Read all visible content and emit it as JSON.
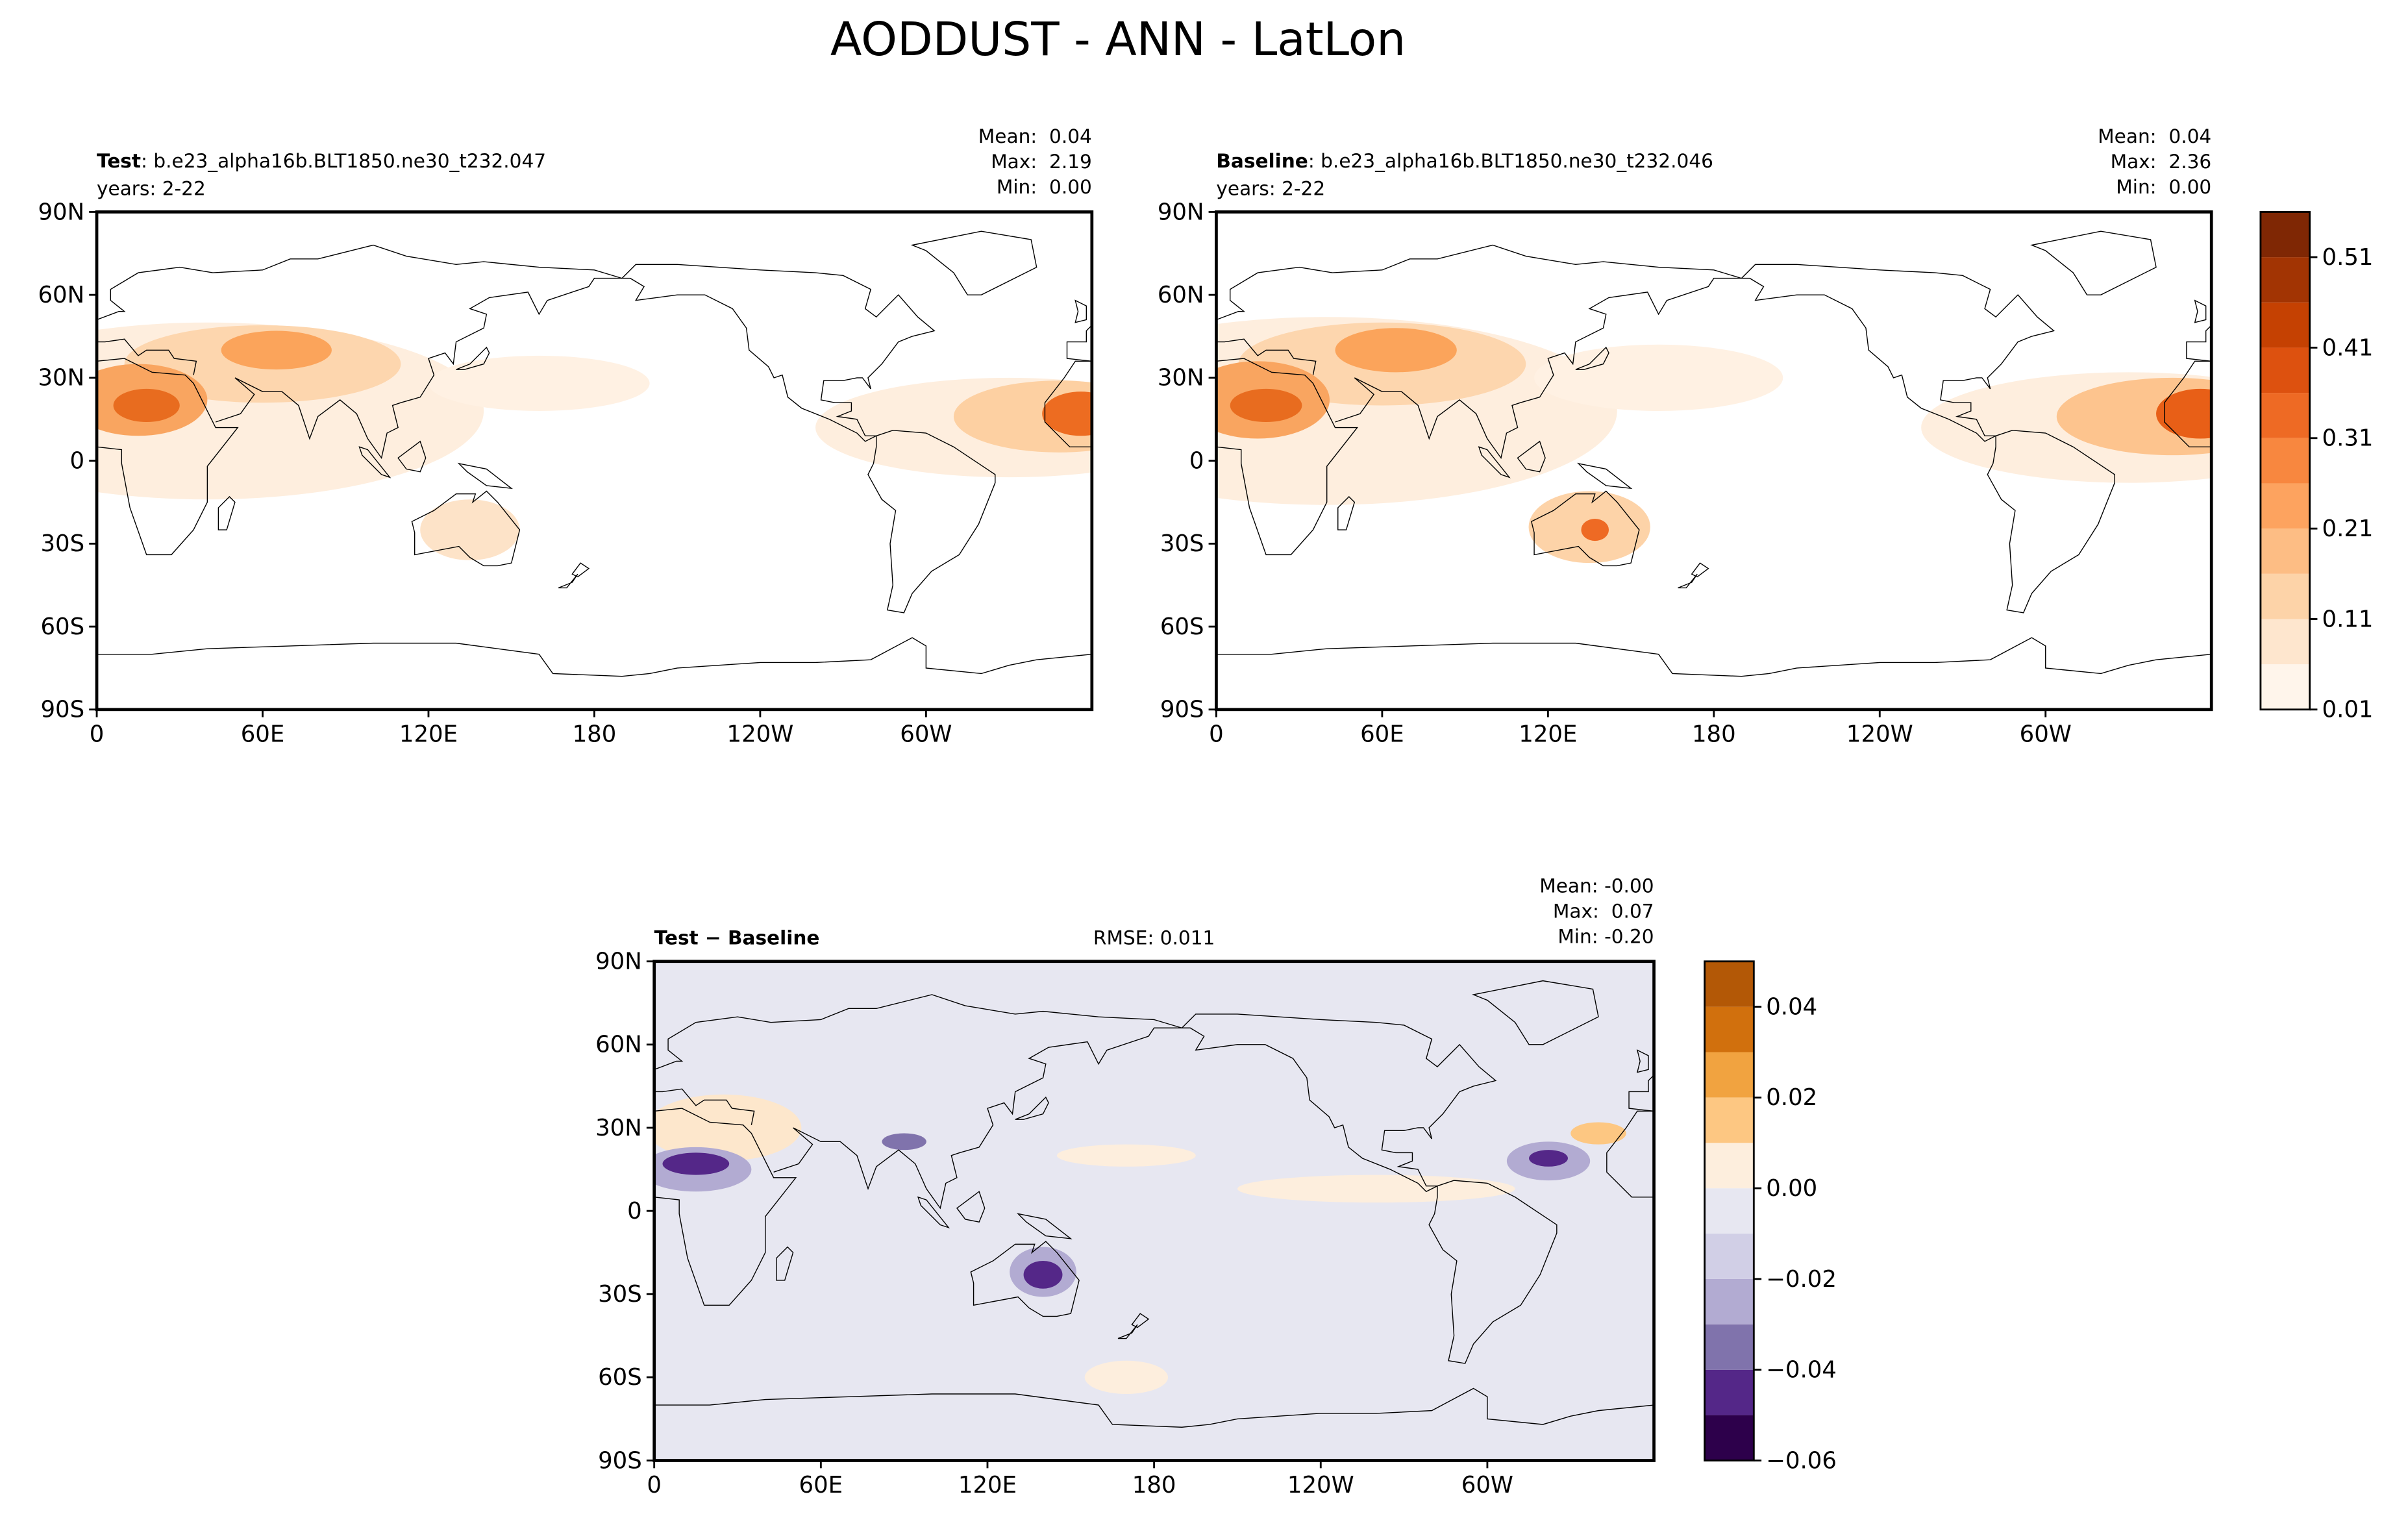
{
  "title": "AODDUST - ANN - LatLon",
  "chart_data": [
    {
      "type": "map",
      "label": "Test",
      "case": ": b.e23_alpha16b.BLT1850.ne30_t232.047",
      "years": "years: 2-22",
      "stats": [
        "Mean:  0.04",
        "Max:  2.19",
        "Min:  0.00"
      ],
      "xlim": [
        0,
        360
      ],
      "ylim": [
        -90,
        90
      ],
      "xticks": [
        0,
        {
          "value": 60,
          "label": "60E"
        },
        {
          "value": 120,
          "label": "120E"
        },
        180,
        {
          "value": 240,
          "label": "120W"
        },
        {
          "value": 300,
          "label": "60W"
        }
      ],
      "yticks": [
        {
          "value": -90,
          "label": "90S"
        },
        {
          "value": -60,
          "label": "60S"
        },
        {
          "value": -30,
          "label": "30S"
        },
        0,
        {
          "value": 30,
          "label": "30N"
        },
        {
          "value": 60,
          "label": "60N"
        },
        {
          "value": 90,
          "label": "90N"
        }
      ],
      "grid": false
    },
    {
      "type": "map",
      "label": "Baseline",
      "case": ": b.e23_alpha16b.BLT1850.ne30_t232.046",
      "years": "years: 2-22",
      "stats": [
        "Mean:  0.04",
        "Max:  2.36",
        "Min:  0.00"
      ],
      "xlim": [
        0,
        360
      ],
      "ylim": [
        -90,
        90
      ],
      "xticks": [
        0,
        {
          "value": 60,
          "label": "60E"
        },
        {
          "value": 120,
          "label": "120E"
        },
        180,
        {
          "value": 240,
          "label": "120W"
        },
        {
          "value": 300,
          "label": "60W"
        }
      ],
      "yticks": [
        {
          "value": -90,
          "label": "90S"
        },
        {
          "value": -60,
          "label": "60S"
        },
        {
          "value": -30,
          "label": "30S"
        },
        0,
        {
          "value": 30,
          "label": "30N"
        },
        {
          "value": 60,
          "label": "60N"
        },
        {
          "value": 90,
          "label": "90N"
        }
      ],
      "grid": false,
      "colorbar": {
        "levels": [
          0.01,
          0.06,
          0.11,
          0.16,
          0.21,
          0.26,
          0.31,
          0.36,
          0.41,
          0.46,
          0.51,
          0.56
        ],
        "colors": [
          "#fff5eb",
          "#fee6ce",
          "#fdd3a8",
          "#fdbd84",
          "#fda35f",
          "#f8873f",
          "#ee6a24",
          "#dd510f",
          "#c54102",
          "#a23403",
          "#7f2704"
        ],
        "ticks": [
          0.01,
          0.11,
          0.21,
          0.31,
          0.41,
          0.51
        ]
      }
    },
    {
      "type": "map",
      "label": "Test − Baseline",
      "rmse": "RMSE: 0.011",
      "stats": [
        "Mean: -0.00",
        "Max:  0.07",
        "Min: -0.20"
      ],
      "xlim": [
        0,
        360
      ],
      "ylim": [
        -90,
        90
      ],
      "xticks": [
        0,
        {
          "value": 60,
          "label": "60E"
        },
        {
          "value": 120,
          "label": "120E"
        },
        180,
        {
          "value": 240,
          "label": "120W"
        },
        {
          "value": 300,
          "label": "60W"
        }
      ],
      "yticks": [
        {
          "value": -90,
          "label": "90S"
        },
        {
          "value": -60,
          "label": "60S"
        },
        {
          "value": -30,
          "label": "30S"
        },
        0,
        {
          "value": 30,
          "label": "30N"
        },
        {
          "value": 60,
          "label": "60N"
        },
        {
          "value": 90,
          "label": "90N"
        }
      ],
      "grid": false,
      "colorbar": {
        "levels": [
          -0.06,
          -0.05,
          -0.04,
          -0.03,
          -0.02,
          -0.01,
          0,
          0.01,
          0.02,
          0.03,
          0.04,
          0.05
        ],
        "colors": [
          "#2d004b",
          "#542788",
          "#8073ac",
          "#b2abd2",
          "#d1cfe6",
          "#e7e7f1",
          "#fdeedd",
          "#fdc782",
          "#f1a340",
          "#d1700d",
          "#b35806"
        ],
        "ticks": [
          {
            "value": -0.06,
            "label": "−0.06"
          },
          {
            "value": -0.04,
            "label": "−0.04"
          },
          {
            "value": -0.02,
            "label": "−0.02"
          },
          {
            "value": 0,
            "label": "0.00"
          },
          0.02,
          0.04
        ]
      }
    }
  ]
}
